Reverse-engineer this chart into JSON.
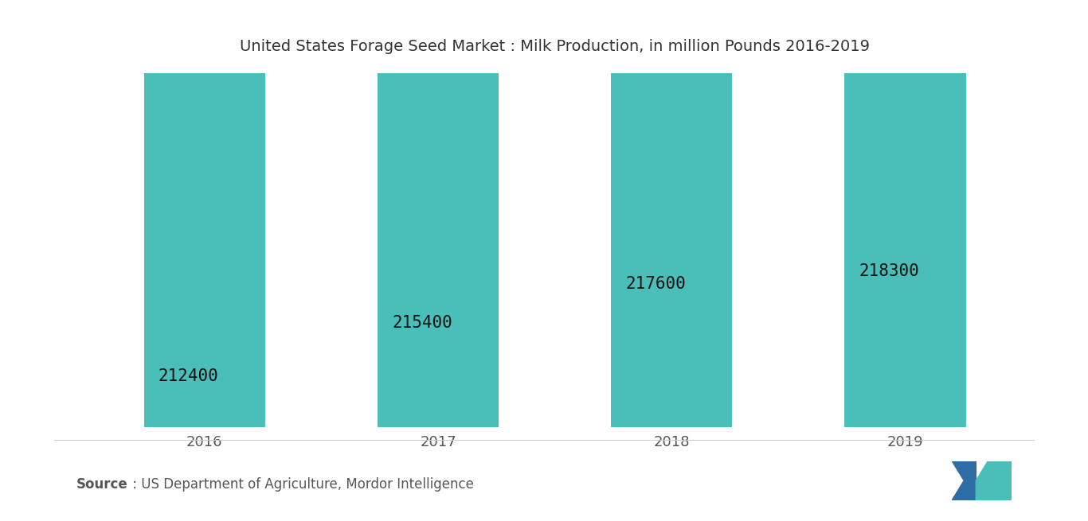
{
  "title": "United States Forage Seed Market : Milk Production, in million Pounds 2016-2019",
  "categories": [
    "2016",
    "2017",
    "2018",
    "2019"
  ],
  "values": [
    212400,
    215400,
    217600,
    218300
  ],
  "bar_color": "#4ABFBA",
  "bar_edge_color": "#4ABFBA",
  "label_color": "#111111",
  "label_fontsize": 15,
  "title_fontsize": 14,
  "xlabel_fontsize": 13,
  "ylim_min": 209500,
  "ylim_max": 219500,
  "background_color": "#ffffff",
  "source_bold": "Source",
  "source_rest": " : US Department of Agriculture, Mordor Intelligence",
  "source_fontsize": 12,
  "bar_width": 0.52
}
